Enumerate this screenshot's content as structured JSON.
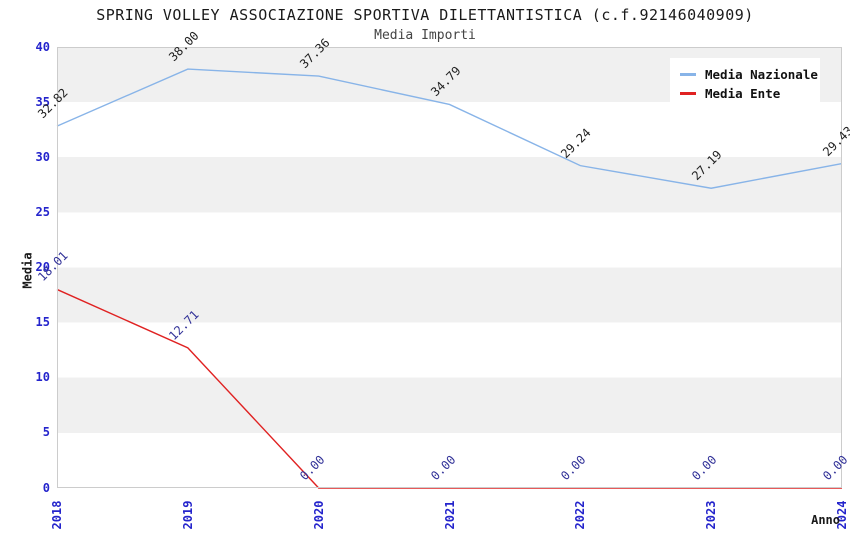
{
  "header": {
    "title": "SPRING VOLLEY ASSOCIAZIONE SPORTIVA DILETTANTISTICA (c.f.92146040909)",
    "subtitle": "Media Importi"
  },
  "legend": {
    "items": [
      {
        "label": "Media Nazionale",
        "color": "#88b4e8"
      },
      {
        "label": "Media Ente",
        "color": "#e02222"
      }
    ]
  },
  "axes": {
    "x_title": "Anno",
    "y_title": "Media",
    "x_tick_labels": [
      "2018",
      "2019",
      "2020",
      "2021",
      "2022",
      "2023",
      "2024"
    ],
    "y_tick_labels": [
      "0",
      "5",
      "10",
      "15",
      "20",
      "25",
      "30",
      "35",
      "40"
    ],
    "tick_color": "#2424cc"
  },
  "colors": {
    "band_gray": "#f0f0f0",
    "band_white": "#ffffff",
    "plot_border": "#cccccc",
    "nazionale_line": "#88b4e8",
    "ente_line": "#e02222",
    "nazionale_label": "#222222",
    "ente_label": "#333399"
  },
  "chart_data": {
    "type": "line",
    "title": "Media Importi",
    "x": [
      2018,
      2019,
      2020,
      2021,
      2022,
      2023,
      2024
    ],
    "xlabel": "Anno",
    "ylabel": "Media",
    "ylim": [
      0,
      40
    ],
    "y_tick_step": 5,
    "grid": "horizontal-bands",
    "legend_position": "top-right",
    "series": [
      {
        "name": "Media Nazionale",
        "color": "#88b4e8",
        "label_color": "#222222",
        "values": [
          32.82,
          38.0,
          37.36,
          34.79,
          29.24,
          27.19,
          29.43
        ]
      },
      {
        "name": "Media Ente",
        "color": "#e02222",
        "label_color": "#333399",
        "values": [
          18.01,
          12.71,
          0.0,
          0.0,
          0.0,
          0.0,
          0.0
        ]
      }
    ]
  }
}
